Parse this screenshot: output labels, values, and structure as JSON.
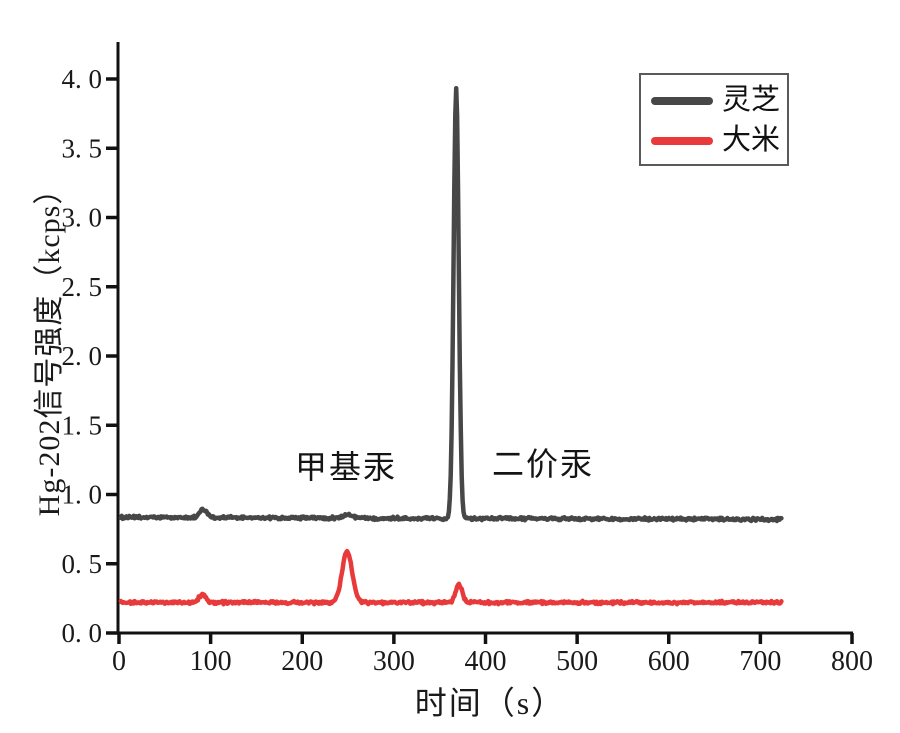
{
  "figure": {
    "background": "#ffffff",
    "axis_color": "#111111",
    "text_color": "#1a1a1a"
  },
  "chart_data": {
    "type": "line",
    "title": "",
    "xlabel": "时间（s）",
    "ylabel": "Hg-202信号强度（kcps）",
    "xlim": [
      0,
      800
    ],
    "ylim": [
      0.0,
      4.0
    ],
    "grid": false,
    "x_ticks": [
      0,
      100,
      200,
      300,
      400,
      500,
      600,
      700,
      800
    ],
    "y_ticks": [
      {
        "value": 0.0,
        "label": "0. 0"
      },
      {
        "value": 0.5,
        "label": "0. 5"
      },
      {
        "value": 1.0,
        "label": "1. 0"
      },
      {
        "value": 1.5,
        "label": "1. 5"
      },
      {
        "value": 2.0,
        "label": "2. 0"
      },
      {
        "value": 2.5,
        "label": "2. 5"
      },
      {
        "value": 3.0,
        "label": "3. 0"
      },
      {
        "value": 3.5,
        "label": "3. 5"
      },
      {
        "value": 4.0,
        "label": "4. 0"
      }
    ],
    "legend": {
      "position": "upper-right",
      "border_color": "#5a5a5a"
    },
    "series": [
      {
        "id": "lingzhi",
        "name": "灵芝",
        "color": "#474747",
        "baseline": 0.835,
        "drift": -0.015,
        "noise": 0.013,
        "t_range": [
          2,
          723
        ],
        "peaks": [
          {
            "center": 92,
            "height": 0.06,
            "sigma": 4.0
          },
          {
            "center": 250,
            "height": 0.025,
            "sigma": 5.0
          },
          {
            "center": 368,
            "height": 3.1,
            "sigma": 2.8
          }
        ]
      },
      {
        "id": "dami",
        "name": "大米",
        "color": "#e8393b",
        "baseline": 0.22,
        "drift": 0.0,
        "noise": 0.013,
        "t_range": [
          2,
          723
        ],
        "peaks": [
          {
            "center": 91,
            "height": 0.055,
            "sigma": 4.0
          },
          {
            "center": 249,
            "height": 0.37,
            "sigma": 5.5
          },
          {
            "center": 371,
            "height": 0.13,
            "sigma": 3.5
          }
        ]
      }
    ],
    "annotations": [
      {
        "text": "甲基汞",
        "t": 247,
        "v": 1.21
      },
      {
        "text": "二价汞",
        "t": 463,
        "v": 1.23
      }
    ]
  }
}
